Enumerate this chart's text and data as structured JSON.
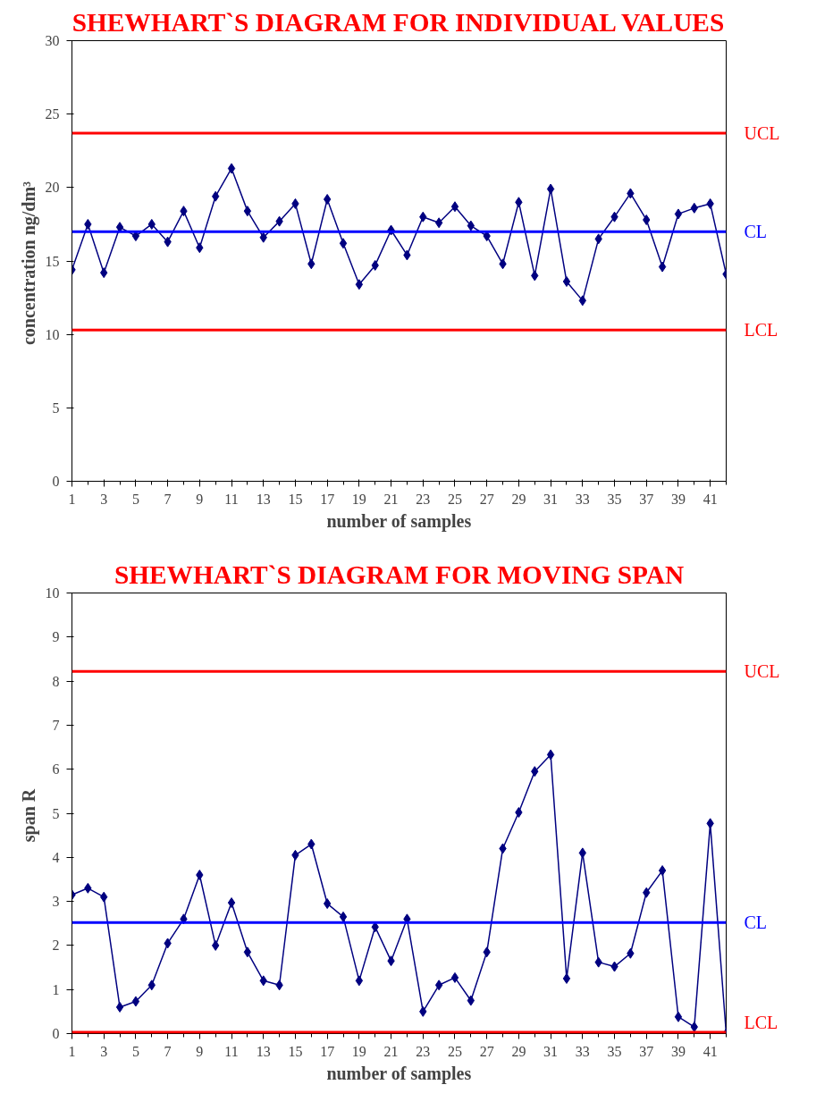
{
  "chart_data": [
    {
      "type": "line",
      "title": "SHEWHART`S DIAGRAM FOR INDIVIDUAL VALUES",
      "xlabel": "number of samples",
      "ylabel": "concentration  ng/dm³",
      "x": [
        1,
        2,
        3,
        4,
        5,
        6,
        7,
        8,
        9,
        10,
        11,
        12,
        13,
        14,
        15,
        16,
        17,
        18,
        19,
        20,
        21,
        22,
        23,
        24,
        25,
        26,
        27,
        28,
        29,
        30,
        31,
        32,
        33,
        34,
        35,
        36,
        37,
        38,
        39,
        40,
        41,
        42
      ],
      "xlim": [
        1,
        42
      ],
      "xticks": [
        1,
        {
          "value": 2,
          "label": null
        },
        3,
        {
          "value": 4,
          "label": null
        },
        5,
        {
          "value": 6,
          "label": null
        },
        7,
        {
          "value": 8,
          "label": null
        },
        9,
        {
          "value": 10,
          "label": null
        },
        11,
        {
          "value": 12,
          "label": null
        },
        13,
        {
          "value": 14,
          "label": null
        },
        15,
        {
          "value": 16,
          "label": null
        },
        17,
        {
          "value": 18,
          "label": null
        },
        19,
        {
          "value": 20,
          "label": null
        },
        21,
        {
          "value": 22,
          "label": null
        },
        23,
        {
          "value": 24,
          "label": null
        },
        25,
        {
          "value": 26,
          "label": null
        },
        27,
        {
          "value": 28,
          "label": null
        },
        29,
        {
          "value": 30,
          "label": null
        },
        31,
        {
          "value": 32,
          "label": null
        },
        33,
        {
          "value": 34,
          "label": null
        },
        35,
        {
          "value": 36,
          "label": null
        },
        37,
        {
          "value": 38,
          "label": null
        },
        39,
        {
          "value": 40,
          "label": null
        },
        41,
        {
          "value": 42,
          "label": null
        }
      ],
      "series": [
        {
          "color": "#000080",
          "values": [
            14.4,
            17.5,
            14.2,
            17.3,
            16.7,
            17.5,
            16.3,
            18.4,
            15.9,
            19.4,
            21.3,
            18.4,
            16.6,
            17.7,
            18.9,
            14.8,
            19.2,
            16.2,
            13.4,
            14.7,
            17.1,
            15.4,
            18.0,
            17.6,
            18.7,
            17.4,
            16.7,
            14.8,
            19.0,
            14.0,
            19.9,
            13.6,
            12.3,
            16.5,
            18.0,
            19.6,
            17.8,
            14.6,
            18.2,
            18.6,
            18.9,
            14.1
          ]
        }
      ],
      "ylim": [
        0,
        30
      ],
      "yticks": [
        0,
        5,
        10,
        15,
        20,
        25,
        30
      ],
      "marker": "diamond",
      "grid": false,
      "ref_lines": [
        {
          "axis": "y",
          "value": 23.7,
          "label": "UCL",
          "color": "#ff0000"
        },
        {
          "axis": "y",
          "value": 17.0,
          "label": "CL",
          "color": "#0000ff"
        },
        {
          "axis": "y",
          "value": 10.3,
          "label": "LCL",
          "color": "#ff0000"
        }
      ]
    },
    {
      "type": "line",
      "title": "SHEWHART`S DIAGRAM FOR MOVING SPAN",
      "xlabel": "number of samples",
      "ylabel": "span  R",
      "x": [
        1,
        2,
        3,
        4,
        5,
        6,
        7,
        8,
        9,
        10,
        11,
        12,
        13,
        14,
        15,
        16,
        17,
        18,
        19,
        20,
        21,
        22,
        23,
        24,
        25,
        26,
        27,
        28,
        29,
        30,
        31,
        32,
        33,
        34,
        35,
        36,
        37,
        38,
        39,
        40,
        41,
        42
      ],
      "xlim": [
        1,
        42
      ],
      "xticks": [
        1,
        {
          "value": 2,
          "label": null
        },
        3,
        {
          "value": 4,
          "label": null
        },
        5,
        {
          "value": 6,
          "label": null
        },
        7,
        {
          "value": 8,
          "label": null
        },
        9,
        {
          "value": 10,
          "label": null
        },
        11,
        {
          "value": 12,
          "label": null
        },
        13,
        {
          "value": 14,
          "label": null
        },
        15,
        {
          "value": 16,
          "label": null
        },
        17,
        {
          "value": 18,
          "label": null
        },
        19,
        {
          "value": 20,
          "label": null
        },
        21,
        {
          "value": 22,
          "label": null
        },
        23,
        {
          "value": 24,
          "label": null
        },
        25,
        {
          "value": 26,
          "label": null
        },
        27,
        {
          "value": 28,
          "label": null
        },
        29,
        {
          "value": 30,
          "label": null
        },
        31,
        {
          "value": 32,
          "label": null
        },
        33,
        {
          "value": 34,
          "label": null
        },
        35,
        {
          "value": 36,
          "label": null
        },
        37,
        {
          "value": 38,
          "label": null
        },
        39,
        {
          "value": 40,
          "label": null
        },
        41,
        {
          "value": 42,
          "label": null
        }
      ],
      "series": [
        {
          "color": "#000080",
          "values": [
            3.15,
            3.3,
            3.1,
            0.6,
            0.73,
            1.1,
            2.05,
            2.6,
            3.6,
            2.0,
            2.97,
            1.85,
            1.2,
            1.1,
            4.05,
            4.3,
            2.95,
            2.65,
            1.2,
            2.42,
            1.65,
            2.6,
            0.5,
            1.1,
            1.27,
            0.75,
            1.85,
            4.2,
            5.02,
            5.95,
            6.33,
            1.25,
            4.1,
            1.62,
            1.52,
            1.82,
            3.2,
            3.7,
            0.38,
            0.15,
            4.77,
            0.0
          ]
        }
      ],
      "ylim": [
        0,
        10
      ],
      "yticks": [
        0,
        1,
        2,
        3,
        4,
        5,
        6,
        7,
        8,
        9,
        10
      ],
      "marker": "diamond",
      "grid": false,
      "ref_lines": [
        {
          "axis": "y",
          "value": 8.22,
          "label": "UCL",
          "color": "#ff0000"
        },
        {
          "axis": "y",
          "value": 2.52,
          "label": "CL",
          "color": "#0000ff"
        },
        {
          "axis": "y",
          "value": 0.03,
          "label": "LCL",
          "color": "#ff0000"
        }
      ]
    }
  ]
}
